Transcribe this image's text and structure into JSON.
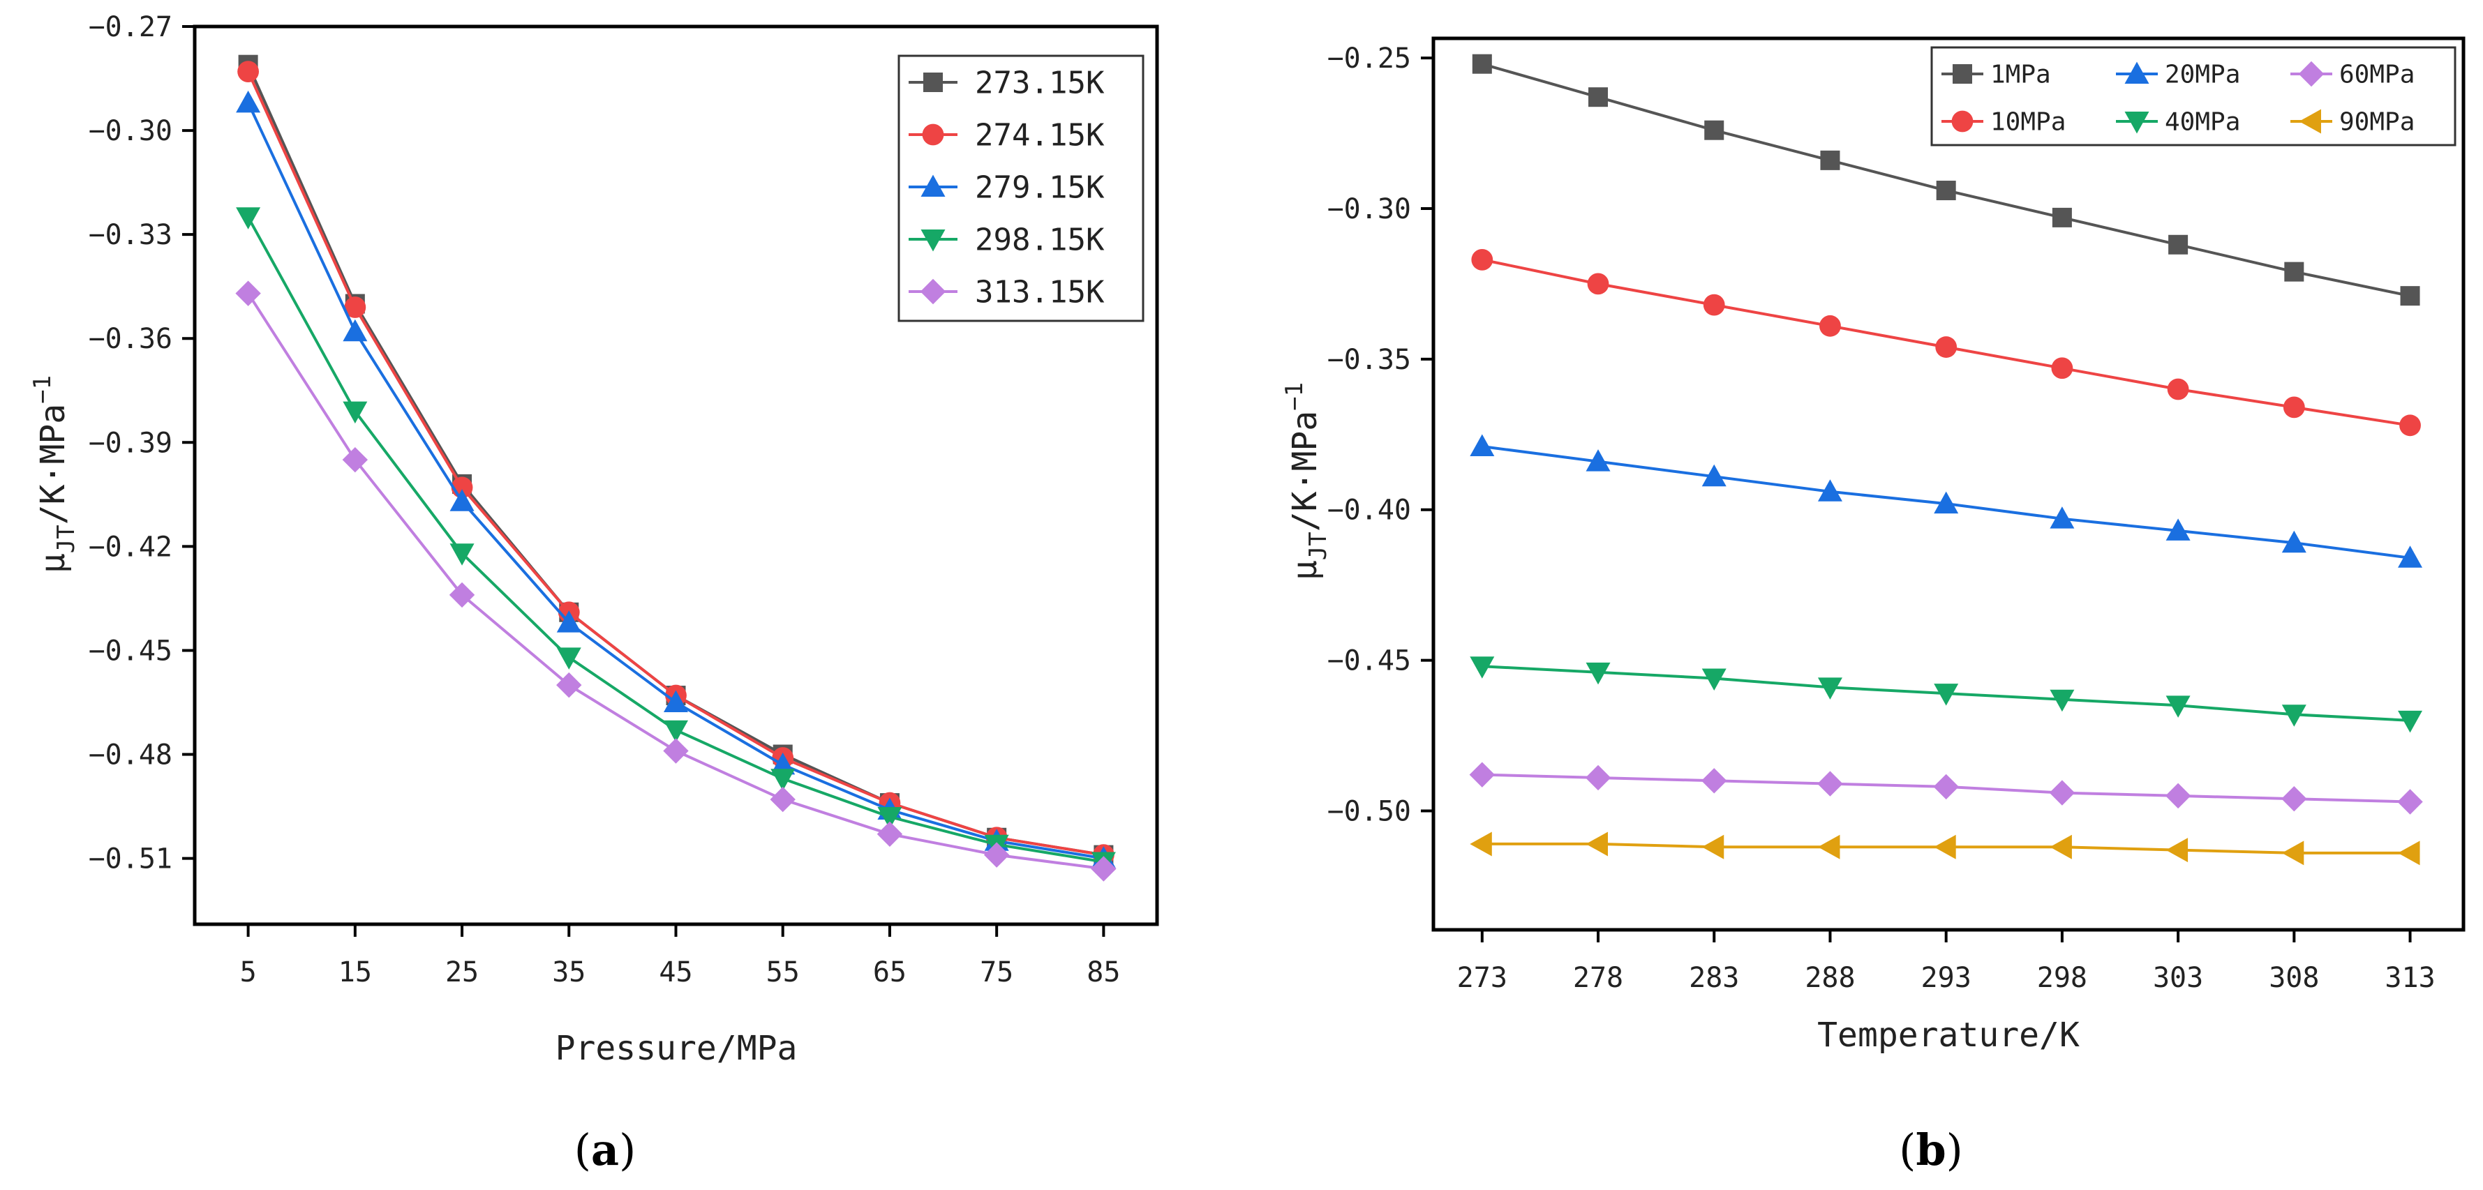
{
  "chart_data": [
    {
      "panel": "a",
      "type": "line",
      "xlabel": "Pressure/MPa",
      "ylabel_main": "μ",
      "ylabel_sub": "JT",
      "ylabel_rest": "/K·MPa",
      "ylabel_sup": "−1",
      "x": [
        5,
        15,
        25,
        35,
        45,
        55,
        65,
        75,
        85
      ],
      "x_ticks": [
        "5",
        "15",
        "25",
        "35",
        "45",
        "55",
        "65",
        "75",
        "85"
      ],
      "xlim": [
        0,
        90
      ],
      "ylim": [
        -0.529,
        -0.27
      ],
      "y_ticks": [
        -0.27,
        -0.3,
        -0.33,
        -0.36,
        -0.39,
        -0.42,
        -0.45,
        -0.48,
        -0.51
      ],
      "y_tick_labels": [
        "−0.27",
        "−0.30",
        "−0.33",
        "−0.36",
        "−0.39",
        "−0.42",
        "−0.45",
        "−0.48",
        "−0.51"
      ],
      "legend_position": "top-right",
      "series": [
        {
          "name": "273.15K",
          "color": "#555555",
          "marker": "square",
          "values": [
            -0.281,
            -0.35,
            -0.402,
            -0.439,
            -0.463,
            -0.48,
            -0.494,
            -0.504,
            -0.509
          ]
        },
        {
          "name": "274.15K",
          "color": "#ee4444",
          "marker": "circle",
          "values": [
            -0.283,
            -0.351,
            -0.403,
            -0.439,
            -0.463,
            -0.481,
            -0.494,
            -0.504,
            -0.509
          ]
        },
        {
          "name": "279.15K",
          "color": "#1a6fe0",
          "marker": "triangle-up",
          "values": [
            -0.292,
            -0.358,
            -0.407,
            -0.442,
            -0.465,
            -0.483,
            -0.496,
            -0.505,
            -0.51
          ]
        },
        {
          "name": "298.15K",
          "color": "#16a866",
          "marker": "triangle-down",
          "values": [
            -0.325,
            -0.381,
            -0.422,
            -0.452,
            -0.473,
            -0.487,
            -0.498,
            -0.506,
            -0.511
          ]
        },
        {
          "name": "313.15K",
          "color": "#c07fe0",
          "marker": "diamond",
          "values": [
            -0.347,
            -0.395,
            -0.434,
            -0.46,
            -0.479,
            -0.493,
            -0.503,
            -0.509,
            -0.513
          ]
        }
      ]
    },
    {
      "panel": "b",
      "type": "line",
      "xlabel": "Temperature/K",
      "ylabel_main": "μ",
      "ylabel_sub": "JT",
      "ylabel_rest": "/K·MPa",
      "ylabel_sup": "−1",
      "x": [
        273,
        278,
        283,
        288,
        293,
        298,
        303,
        308,
        313
      ],
      "x_ticks": [
        "273",
        "278",
        "283",
        "288",
        "293",
        "298",
        "303",
        "308",
        "313"
      ],
      "xlim": [
        270.9,
        315.3
      ],
      "ylim": [
        -0.5395,
        -0.2435
      ],
      "y_ticks": [
        -0.25,
        -0.3,
        -0.35,
        -0.4,
        -0.45,
        -0.5
      ],
      "y_tick_labels": [
        "−0.25",
        "−0.30",
        "−0.35",
        "−0.40",
        "−0.45",
        "−0.50"
      ],
      "legend_position": "top-right",
      "series": [
        {
          "name": "1MPa",
          "color": "#555555",
          "marker": "square",
          "values": [
            -0.252,
            -0.263,
            -0.274,
            -0.284,
            -0.294,
            -0.303,
            -0.312,
            -0.321,
            -0.329
          ]
        },
        {
          "name": "10MPa",
          "color": "#ee4444",
          "marker": "circle",
          "values": [
            -0.317,
            -0.325,
            -0.332,
            -0.339,
            -0.346,
            -0.353,
            -0.36,
            -0.366,
            -0.372
          ]
        },
        {
          "name": "20MPa",
          "color": "#1a6fe0",
          "marker": "triangle-up",
          "values": [
            -0.379,
            -0.384,
            -0.389,
            -0.394,
            -0.398,
            -0.403,
            -0.407,
            -0.411,
            -0.416
          ]
        },
        {
          "name": "40MPa",
          "color": "#16a866",
          "marker": "triangle-down",
          "values": [
            -0.452,
            -0.454,
            -0.456,
            -0.459,
            -0.461,
            -0.463,
            -0.465,
            -0.468,
            -0.47
          ]
        },
        {
          "name": "60MPa",
          "color": "#c07fe0",
          "marker": "diamond",
          "values": [
            -0.488,
            -0.489,
            -0.49,
            -0.491,
            -0.492,
            -0.494,
            -0.495,
            -0.496,
            -0.497
          ]
        },
        {
          "name": "90MPa",
          "color": "#e0a010",
          "marker": "triangle-left",
          "values": [
            -0.511,
            -0.511,
            -0.512,
            -0.512,
            -0.512,
            -0.512,
            -0.513,
            -0.514,
            -0.514
          ]
        }
      ]
    }
  ],
  "panel_labels": {
    "a": {
      "open": "(",
      "letter": "a",
      "close": ")"
    },
    "b": {
      "open": "(",
      "letter": "b",
      "close": ")"
    }
  }
}
